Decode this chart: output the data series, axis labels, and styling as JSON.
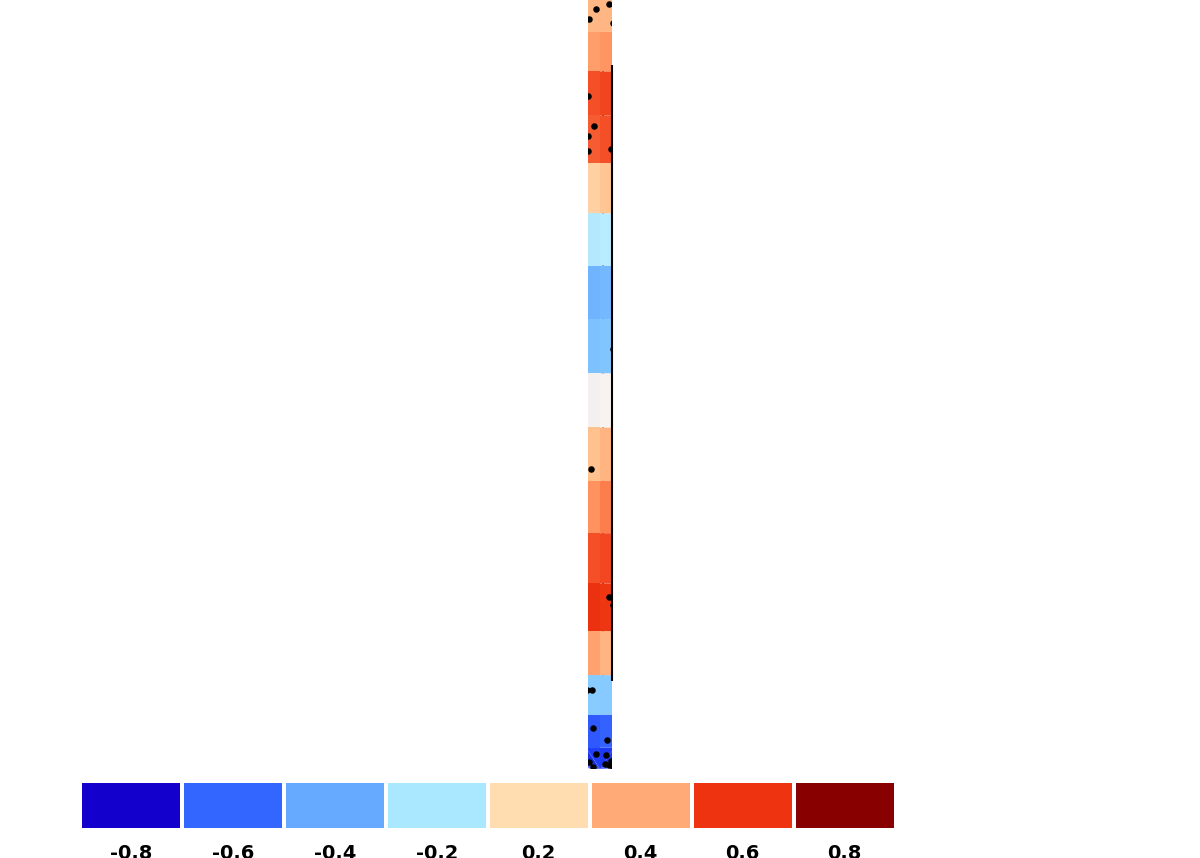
{
  "figsize": [
    12.0,
    8.58
  ],
  "dpi": 100,
  "background_color": "#ffffff",
  "colorbar_labels": [
    "-0.8",
    "-0.6",
    "-0.4",
    "-0.2",
    "0.2",
    "0.4",
    "0.6",
    "0.8"
  ],
  "cb_colors": [
    "#1400cc",
    "#3366ff",
    "#66aaff",
    "#aae8ff",
    "#ffddb0",
    "#ffaa77",
    "#ee3311",
    "#880000"
  ],
  "cmap_nodes": [
    [
      0.0,
      "#0a00bb"
    ],
    [
      0.1,
      "#2244ff"
    ],
    [
      0.2,
      "#5599ff"
    ],
    [
      0.3,
      "#88ccff"
    ],
    [
      0.4,
      "#bbeeff"
    ],
    [
      0.47,
      "#f5f0ee"
    ],
    [
      0.5,
      "#fff8f5"
    ],
    [
      0.53,
      "#ffe8d0"
    ],
    [
      0.6,
      "#ffcc99"
    ],
    [
      0.7,
      "#ff8855"
    ],
    [
      0.8,
      "#ee3311"
    ],
    [
      0.9,
      "#cc1100"
    ],
    [
      1.0,
      "#770000"
    ]
  ],
  "vmin": -1.0,
  "vmax": 1.0,
  "seed": 42,
  "dot_size": 22,
  "grid_step": 10
}
